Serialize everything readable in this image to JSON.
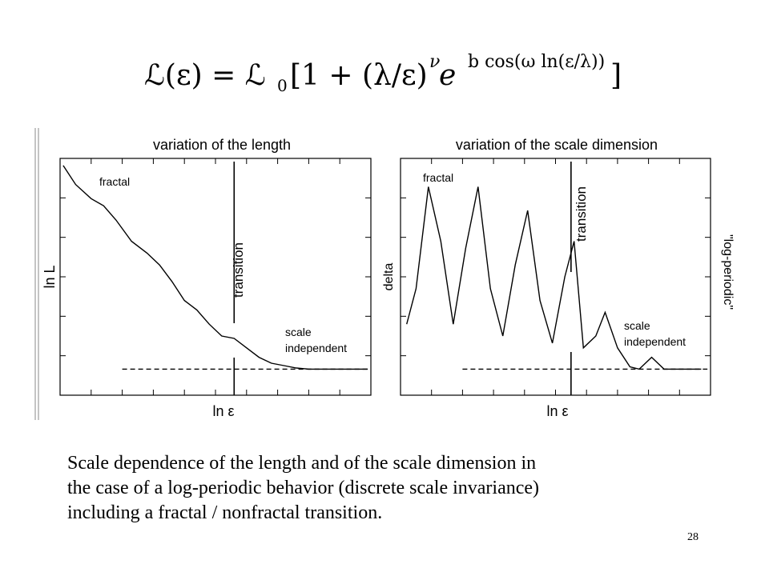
{
  "formula": {
    "lhs": "ℒ(ε) = ℒ",
    "sub0": "0",
    "body": "[1 + (λ/ε)",
    "nu": "ν",
    "e": " e",
    "exponent": "b cos(ω ln(ε/λ))",
    "close": "]"
  },
  "caption": {
    "line1": "Scale dependence of the length and of the scale dimension in",
    "line2": "the case of a log-periodic behavior (discrete scale invariance)",
    "line3": "including a fractal / nonfractal transition."
  },
  "page_number": "28",
  "chart_data": [
    {
      "type": "line",
      "title": "variation of the length",
      "xlabel": "ln ε",
      "ylabel": "ln L",
      "xlim": [
        0,
        10
      ],
      "ylim": [
        0,
        10
      ],
      "annotations": {
        "fractal": "fractal",
        "transition": "transition",
        "scale_line1": "scale",
        "scale_line2": "independent"
      },
      "transition_x": 5.6,
      "plateau_y": 1.1,
      "series": [
        {
          "x": [
            0.1,
            0.5,
            1.0,
            1.4,
            1.8,
            2.3,
            2.8,
            3.2,
            3.6,
            4.0,
            4.4,
            4.8,
            5.2,
            5.6,
            6.0,
            6.4,
            6.8,
            7.2,
            7.6,
            8.0,
            8.4,
            9.0,
            9.5,
            9.9
          ],
          "y": [
            9.7,
            8.9,
            8.3,
            8.0,
            7.4,
            6.5,
            6.0,
            5.5,
            4.8,
            4.0,
            3.6,
            3.0,
            2.5,
            2.4,
            2.0,
            1.6,
            1.35,
            1.25,
            1.15,
            1.1,
            1.1,
            1.1,
            1.1,
            1.1
          ]
        }
      ]
    },
    {
      "type": "line",
      "title": "variation of the scale dimension",
      "xlabel": "ln ε",
      "ylabel": "delta",
      "right_label": "\"log-periodic\"",
      "xlim": [
        0,
        10
      ],
      "ylim": [
        0,
        10
      ],
      "annotations": {
        "fractal": "fractal",
        "transition": "transition",
        "scale_line1": "scale",
        "scale_line2": "independent"
      },
      "transition_x": 5.5,
      "plateau_y": 1.1,
      "series": [
        {
          "x": [
            0.2,
            0.5,
            0.9,
            1.3,
            1.7,
            2.1,
            2.5,
            2.9,
            3.3,
            3.7,
            4.1,
            4.5,
            4.9,
            5.3,
            5.6,
            5.9,
            6.3,
            6.6,
            7.0,
            7.4,
            7.7,
            8.1,
            8.5,
            8.9,
            9.3,
            9.7
          ],
          "y": [
            3.0,
            4.5,
            8.8,
            6.5,
            3.0,
            6.2,
            8.8,
            4.5,
            2.5,
            5.5,
            7.8,
            4.0,
            2.2,
            5.0,
            6.5,
            2.0,
            2.5,
            3.5,
            2.0,
            1.2,
            1.1,
            1.6,
            1.1,
            1.1,
            1.1,
            1.1
          ]
        }
      ]
    }
  ]
}
